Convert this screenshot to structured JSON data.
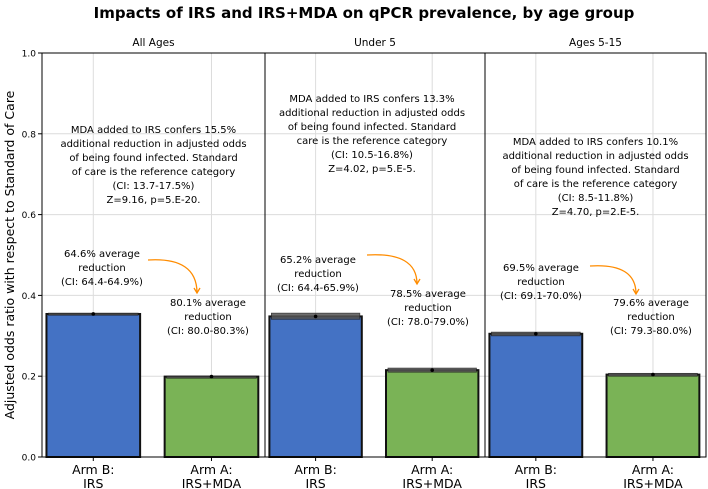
{
  "chart_data": {
    "type": "bar",
    "title": "Impacts of IRS and IRS+MDA on qPCR prevalence, by age group",
    "ylabel": "Adjusted odds ratio with respect to Standard of Care",
    "xlabel": "",
    "ylim": [
      0,
      1.0
    ],
    "yticks": [
      "0.0",
      "0.2",
      "0.4",
      "0.6",
      "0.8",
      "1.0"
    ],
    "grid": true,
    "categories": [
      "Arm B:\nIRS",
      "Arm A:\nIRS+MDA"
    ],
    "colors": {
      "irs": "#4472c4",
      "mda": "#7ab356",
      "arrow": "#ff8c00"
    },
    "panels": [
      {
        "title": "All Ages",
        "values": [
          0.354,
          0.199
        ],
        "ci": [
          [
            0.351,
            0.356
          ],
          [
            0.197,
            0.2
          ]
        ],
        "irs_note": [
          "64.6% average",
          "reduction",
          "(CI: 64.4-64.9%)"
        ],
        "mda_note": [
          "80.1% average",
          "reduction",
          "(CI: 80.0-80.3%)"
        ],
        "summary": [
          "MDA added to IRS confers 15.5%",
          "additional reduction in adjusted odds",
          "of being found infected. Standard",
          "of care is the reference category",
          "(CI: 13.7-17.5%)",
          "Z=9.16, p=5.E-20."
        ]
      },
      {
        "title": "Under 5",
        "values": [
          0.348,
          0.215
        ],
        "ci": [
          [
            0.341,
            0.356
          ],
          [
            0.21,
            0.22
          ]
        ],
        "irs_note": [
          "65.2% average",
          "reduction",
          "(CI: 64.4-65.9%)"
        ],
        "mda_note": [
          "78.5% average",
          "reduction",
          "(CI: 78.0-79.0%)"
        ],
        "summary": [
          "MDA added to IRS confers 13.3%",
          "additional reduction in adjusted odds",
          "of being found infected. Standard",
          "care is the reference category",
          "(CI: 10.5-16.8%)",
          "Z=4.02, p=5.E-5."
        ]
      },
      {
        "title": "Ages 5-15",
        "values": [
          0.305,
          0.204
        ],
        "ci": [
          [
            0.3,
            0.309
          ],
          [
            0.2,
            0.207
          ]
        ],
        "irs_note": [
          "69.5% average",
          "reduction",
          "(CI: 69.1-70.0%)"
        ],
        "mda_note": [
          "79.6% average",
          "reduction",
          "(CI: 79.3-80.0%)"
        ],
        "summary": [
          "MDA added to IRS confers 10.1%",
          "additional reduction in adjusted odds",
          "of being found infected. Standard",
          "of care is the reference category",
          "(CI: 8.5-11.8%)",
          "Z=4.70, p=2.E-5."
        ]
      }
    ]
  }
}
